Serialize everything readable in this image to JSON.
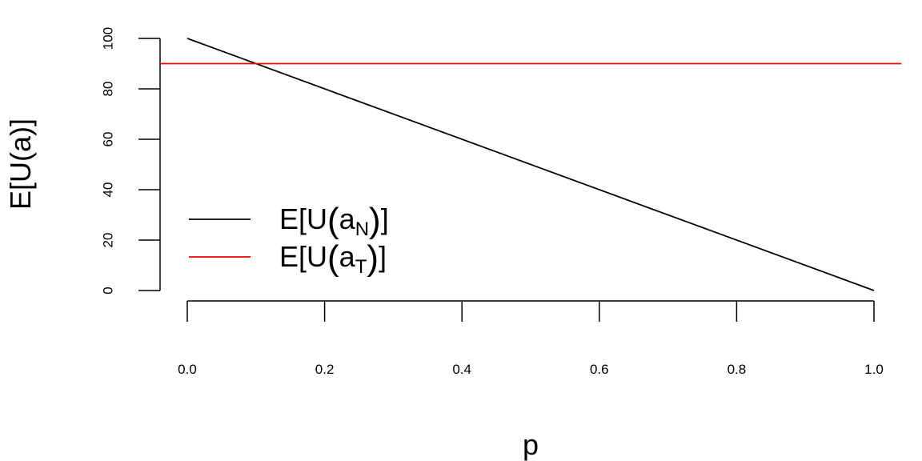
{
  "chart_data": {
    "type": "line",
    "xlabel": "p",
    "ylabel": "E[U(a)]",
    "x_ticks": [
      "0.0",
      "0.2",
      "0.4",
      "0.6",
      "0.8",
      "1.0"
    ],
    "y_ticks": [
      "0",
      "20",
      "40",
      "60",
      "80",
      "100"
    ],
    "xlim": [
      0,
      1
    ],
    "ylim": [
      0,
      100
    ],
    "grid": false,
    "legend_position": "bottom-left",
    "series": [
      {
        "name": "E[U(a_N)]",
        "legend": {
          "prefix": "E[U",
          "open": "(",
          "base": "a",
          "sub": "N",
          "close": ")",
          "suffix": "]"
        },
        "color": "#000000",
        "x": [
          0,
          1
        ],
        "y": [
          100,
          0
        ]
      },
      {
        "name": "E[U(a_T)]",
        "legend": {
          "prefix": "E[U",
          "open": "(",
          "base": "a",
          "sub": "T",
          "close": ")",
          "suffix": "]"
        },
        "color": "#ff0000",
        "x": [
          -0.04,
          1.04
        ],
        "y": [
          90,
          90
        ]
      }
    ]
  }
}
